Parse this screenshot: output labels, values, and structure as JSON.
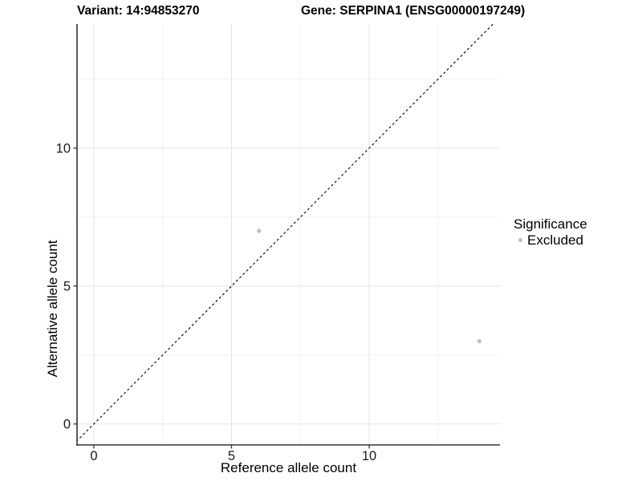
{
  "chart_data": {
    "type": "scatter",
    "title_left": "Variant: 14:94853270",
    "title_right": "Gene: SERPINA1 (ENSG00000197249)",
    "xlabel": "Reference allele count",
    "ylabel": "Alternative allele count",
    "xlim": [
      -0.61,
      14.75
    ],
    "ylim": [
      -0.76,
      14.5
    ],
    "x_ticks": [
      0,
      5,
      10
    ],
    "y_ticks": [
      0,
      5,
      10
    ],
    "minor_ticks": [
      2.5,
      7.5,
      12.5
    ],
    "grid": "major and minor gridlines, white background",
    "points": [
      {
        "x": 6,
        "y": 7,
        "series": "Excluded"
      },
      {
        "x": 14,
        "y": 3,
        "series": "Excluded"
      }
    ],
    "identity_line": {
      "style": "dashed",
      "equation": "y = x",
      "color": "#000000"
    },
    "colors": {
      "point": "#bdbdbd",
      "grid_major": "#e4e4e4",
      "grid_minor": "#f2f2f2",
      "axis_line": "#333333",
      "tick_label": "#1a1a1a"
    },
    "legend": {
      "title": "Significance",
      "position": "right",
      "items": [
        {
          "label": "Excluded",
          "color": "#bdbdbd"
        }
      ]
    }
  }
}
